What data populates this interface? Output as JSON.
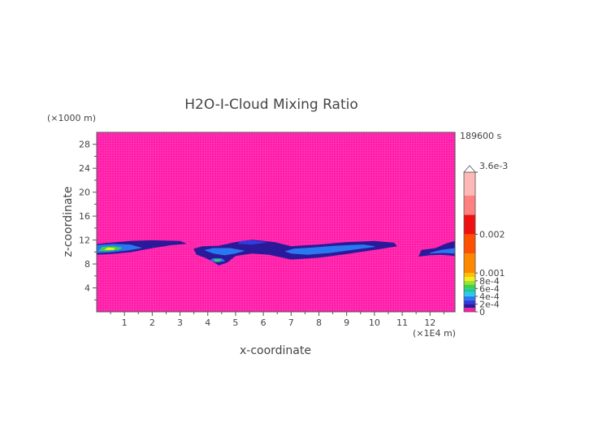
{
  "chart_data": {
    "type": "heatmap",
    "title": "H2O-I-Cloud Mixing Ratio",
    "time_label": "189600 s",
    "xlabel": "x-coordinate",
    "ylabel": "z-coordinate",
    "x_unit": "(×1E4 m)",
    "y_unit": "(×1000 m)",
    "xlim": [
      0,
      12.9
    ],
    "ylim": [
      0,
      30
    ],
    "x_ticks": [
      1,
      2,
      3,
      4,
      5,
      6,
      7,
      8,
      9,
      10,
      11,
      12
    ],
    "y_ticks": [
      4,
      8,
      12,
      16,
      20,
      24,
      28
    ],
    "background_color": "#ff1aa8",
    "colorbar": {
      "labels": [
        {
          "text": "3.6e-3",
          "value": 0.0036
        },
        {
          "text": "0.002",
          "value": 0.002
        },
        {
          "text": "0.001",
          "value": 0.001
        },
        {
          "text": "8e-4",
          "value": 0.0008
        },
        {
          "text": "6e-4",
          "value": 0.0006
        },
        {
          "text": "4e-4",
          "value": 0.0004
        },
        {
          "text": "2e-4",
          "value": 0.0002
        },
        {
          "text": "0",
          "value": 0
        }
      ],
      "max": 0.0036,
      "extends_max": true,
      "levels": [
        {
          "from": 0,
          "to": 0.0001,
          "color": "#ff1aa8"
        },
        {
          "from": 0.0001,
          "to": 0.0002,
          "color": "#2a1a9a"
        },
        {
          "from": 0.0002,
          "to": 0.0003,
          "color": "#2f3ce0"
        },
        {
          "from": 0.0003,
          "to": 0.0004,
          "color": "#2a78f0"
        },
        {
          "from": 0.0004,
          "to": 0.0005,
          "color": "#28c8f0"
        },
        {
          "from": 0.0005,
          "to": 0.0006,
          "color": "#22c8a0"
        },
        {
          "from": 0.0006,
          "to": 0.0007,
          "color": "#3ad24a"
        },
        {
          "from": 0.0007,
          "to": 0.0008,
          "color": "#a0e030"
        },
        {
          "from": 0.0008,
          "to": 0.0009,
          "color": "#f0f020"
        },
        {
          "from": 0.0009,
          "to": 0.001,
          "color": "#ffc000"
        },
        {
          "from": 0.001,
          "to": 0.0015,
          "color": "#ff8800"
        },
        {
          "from": 0.0015,
          "to": 0.002,
          "color": "#ff5000"
        },
        {
          "from": 0.002,
          "to": 0.0025,
          "color": "#ee1111"
        },
        {
          "from": 0.0025,
          "to": 0.003,
          "color": "#ff8080"
        },
        {
          "from": 0.003,
          "to": 0.0036,
          "color": "#ffb8b8"
        }
      ]
    },
    "contour_regions": [
      {
        "name": "cloud-band-left",
        "level": 0.0001,
        "color": "#2a1a9a",
        "points": [
          [
            0,
            9.6
          ],
          [
            0.5,
            9.7
          ],
          [
            1.2,
            10.0
          ],
          [
            2,
            10.7
          ],
          [
            2.7,
            11.2
          ],
          [
            3.2,
            11.4
          ],
          [
            3.0,
            11.8
          ],
          [
            2,
            11.9
          ],
          [
            1.2,
            11.8
          ],
          [
            0.5,
            11.5
          ],
          [
            0,
            11.3
          ]
        ]
      },
      {
        "name": "cloud-band-left-core",
        "level": 0.0003,
        "color": "#2a78f0",
        "points": [
          [
            0,
            9.9
          ],
          [
            0.5,
            10.0
          ],
          [
            1.1,
            10.3
          ],
          [
            1.6,
            10.7
          ],
          [
            1.2,
            11.2
          ],
          [
            0.6,
            11.3
          ],
          [
            0,
            11.1
          ]
        ]
      },
      {
        "name": "cloud-band-left-peak",
        "level": 0.0006,
        "color": "#3ad24a",
        "points": [
          [
            0.1,
            10.2
          ],
          [
            0.4,
            10.2
          ],
          [
            0.8,
            10.4
          ],
          [
            0.9,
            10.7
          ],
          [
            0.6,
            10.9
          ],
          [
            0.2,
            10.8
          ]
        ]
      },
      {
        "name": "cloud-band-left-max",
        "level": 0.0008,
        "color": "#f0f020",
        "points": [
          [
            0.3,
            10.4
          ],
          [
            0.6,
            10.4
          ],
          [
            0.65,
            10.6
          ],
          [
            0.4,
            10.7
          ]
        ]
      },
      {
        "name": "cloud-band-center",
        "level": 0.0001,
        "color": "#2a1a9a",
        "points": [
          [
            3.5,
            10.5
          ],
          [
            3.6,
            9.6
          ],
          [
            3.9,
            9.1
          ],
          [
            4.2,
            8.4
          ],
          [
            4.4,
            7.8
          ],
          [
            4.7,
            8.3
          ],
          [
            5.0,
            9.4
          ],
          [
            5.6,
            9.8
          ],
          [
            6.2,
            9.6
          ],
          [
            6.6,
            9.2
          ],
          [
            7.0,
            8.8
          ],
          [
            8.0,
            9.1
          ],
          [
            9.0,
            9.7
          ],
          [
            10.0,
            10.4
          ],
          [
            10.8,
            11.0
          ],
          [
            10.7,
            11.5
          ],
          [
            10.0,
            11.8
          ],
          [
            9.0,
            11.6
          ],
          [
            8.0,
            11.2
          ],
          [
            7.0,
            10.9
          ],
          [
            6.4,
            11.6
          ],
          [
            5.6,
            12.0
          ],
          [
            5.0,
            11.6
          ],
          [
            4.4,
            11.0
          ],
          [
            3.8,
            10.9
          ]
        ]
      },
      {
        "name": "cloud-band-center-core",
        "level": 0.0003,
        "color": "#2a78f0",
        "points": [
          [
            3.9,
            10.3
          ],
          [
            4.2,
            9.8
          ],
          [
            4.6,
            9.5
          ],
          [
            5.0,
            9.8
          ],
          [
            5.3,
            10.2
          ],
          [
            4.8,
            10.6
          ],
          [
            4.2,
            10.6
          ]
        ]
      },
      {
        "name": "cloud-band-center-lobe",
        "level": 0.0003,
        "color": "#2a78f0",
        "points": [
          [
            4.1,
            8.6
          ],
          [
            4.3,
            8.3
          ],
          [
            4.6,
            8.5
          ],
          [
            4.5,
            8.9
          ],
          [
            4.2,
            8.9
          ]
        ]
      },
      {
        "name": "cloud-band-center-lobe-peak",
        "level": 0.0006,
        "color": "#3ad24a",
        "points": [
          [
            4.25,
            8.5
          ],
          [
            4.45,
            8.5
          ],
          [
            4.45,
            8.75
          ],
          [
            4.25,
            8.75
          ]
        ]
      },
      {
        "name": "cloud-band-right-core",
        "level": 0.0003,
        "color": "#2a78f0",
        "points": [
          [
            7.0,
            9.8
          ],
          [
            7.6,
            9.6
          ],
          [
            8.4,
            9.9
          ],
          [
            9.2,
            10.4
          ],
          [
            10.0,
            10.9
          ],
          [
            9.6,
            11.2
          ],
          [
            8.6,
            11.0
          ],
          [
            7.8,
            10.7
          ],
          [
            7.1,
            10.5
          ],
          [
            6.8,
            10.1
          ]
        ]
      },
      {
        "name": "cloud-band-right-edge",
        "level": 0.0001,
        "color": "#2a1a9a",
        "points": [
          [
            11.6,
            9.3
          ],
          [
            12.0,
            9.5
          ],
          [
            12.4,
            9.6
          ],
          [
            12.9,
            9.4
          ],
          [
            12.9,
            11.8
          ],
          [
            12.6,
            11.4
          ],
          [
            12.2,
            10.6
          ],
          [
            11.7,
            10.3
          ]
        ]
      },
      {
        "name": "cloud-band-right-edge-core",
        "level": 0.0003,
        "color": "#2a78f0",
        "points": [
          [
            12.0,
            9.8
          ],
          [
            12.5,
            9.9
          ],
          [
            12.9,
            9.8
          ],
          [
            12.9,
            10.6
          ],
          [
            12.4,
            10.3
          ]
        ]
      },
      {
        "name": "cloud-band-top-blob",
        "level": 0.0002,
        "color": "#2f3ce0",
        "points": [
          [
            5.1,
            11.4
          ],
          [
            5.6,
            11.3
          ],
          [
            6.1,
            11.6
          ],
          [
            5.6,
            11.9
          ],
          [
            5.2,
            11.8
          ]
        ]
      }
    ]
  }
}
